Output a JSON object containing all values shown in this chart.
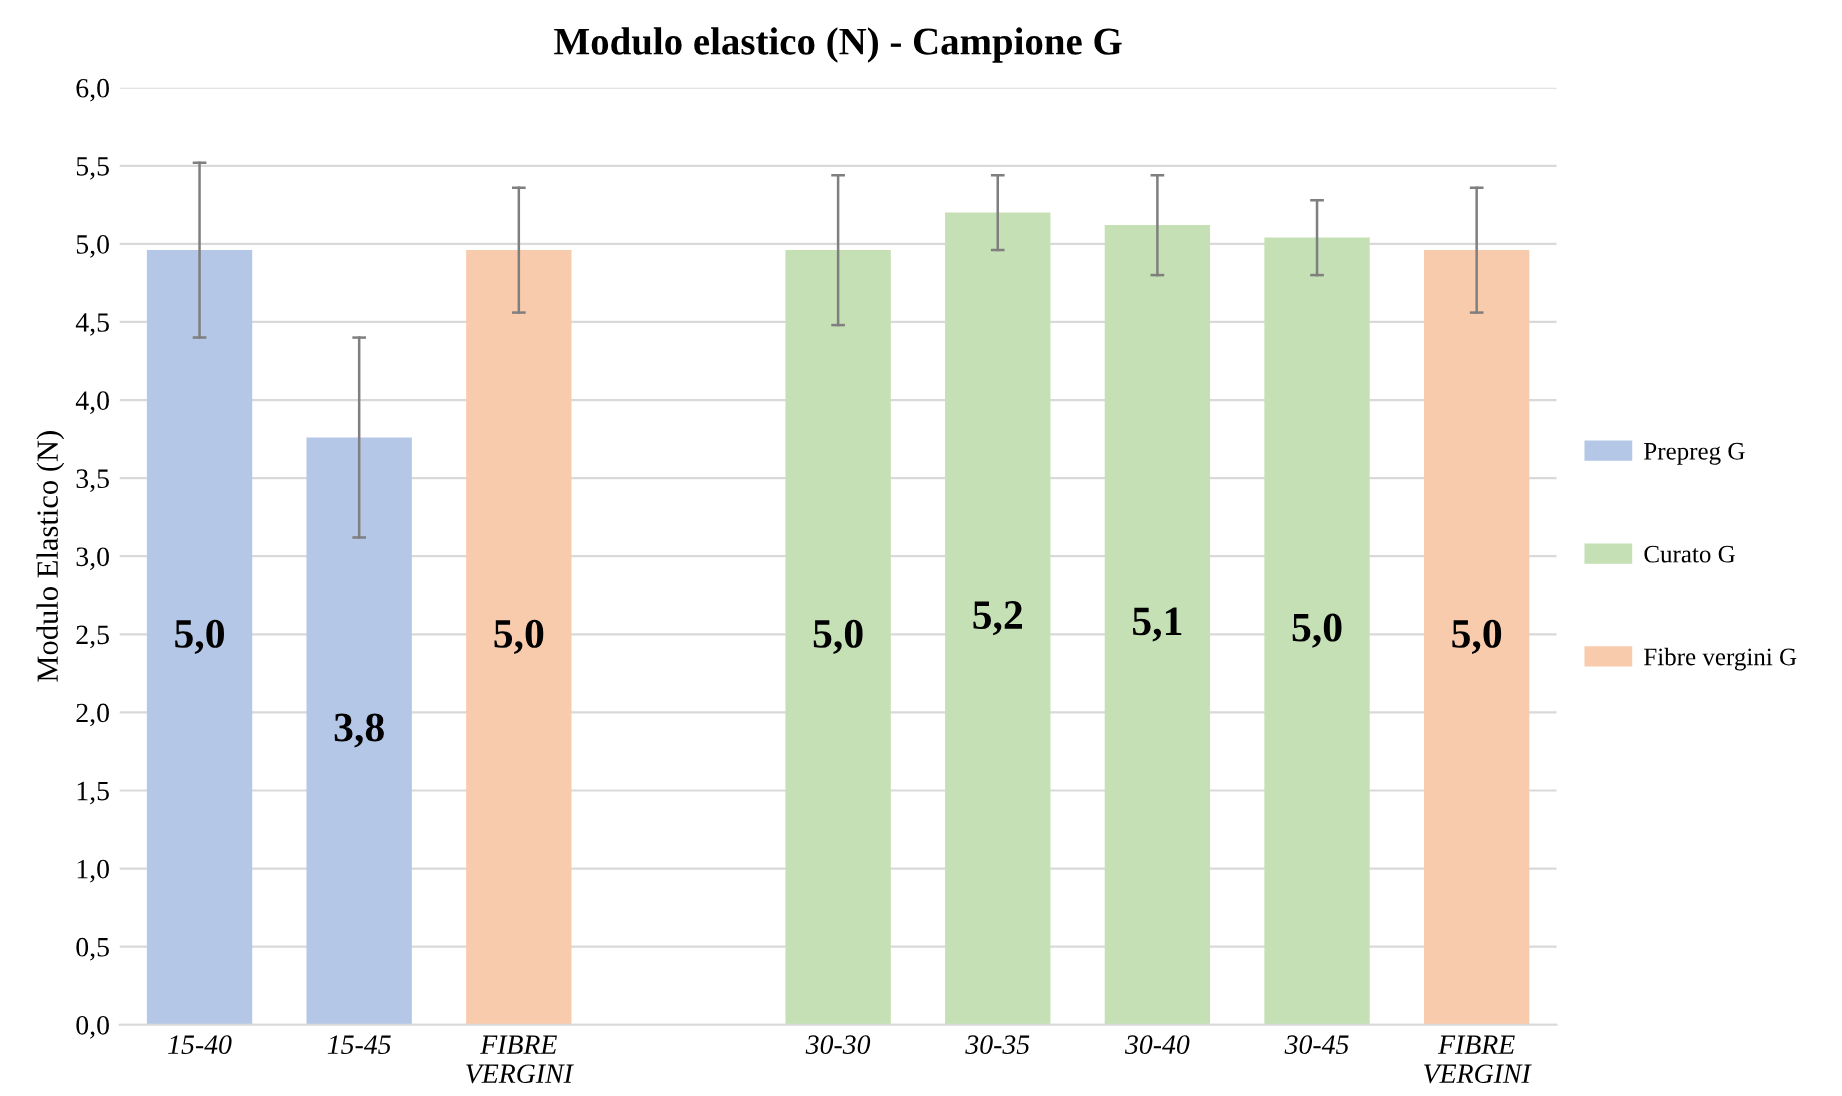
{
  "chart_data": {
    "type": "bar",
    "title": "Modulo elastico (N) - Campione G",
    "ylabel": "Modulo Elastico (N)",
    "categories": [
      "15-40",
      "15-45",
      "FIBRE\nVERGINI",
      null,
      "30-30",
      "30-35",
      "30-40",
      "30-45",
      "FIBRE\nVERGINI"
    ],
    "series": [
      {
        "name": "Prepreg G",
        "color": "#b4c7e7",
        "values": [
          4.96,
          3.76,
          null,
          null,
          null,
          null,
          null,
          null,
          null
        ],
        "errors": [
          [
            4.4,
            5.52
          ],
          [
            3.12,
            4.4
          ],
          null,
          null,
          null,
          null,
          null,
          null,
          null
        ],
        "value_labels": [
          "5,0",
          "3,8",
          null,
          null,
          null,
          null,
          null,
          null,
          null
        ]
      },
      {
        "name": "Curato G",
        "color": "#c5e0b4",
        "values": [
          null,
          null,
          null,
          null,
          4.96,
          5.2,
          5.12,
          5.04,
          null
        ],
        "errors": [
          null,
          null,
          null,
          null,
          [
            4.48,
            5.44
          ],
          [
            4.96,
            5.44
          ],
          [
            4.8,
            5.44
          ],
          [
            4.8,
            5.28
          ],
          null
        ],
        "value_labels": [
          null,
          null,
          null,
          null,
          "5,0",
          "5,2",
          "5,1",
          "5,0",
          null
        ]
      },
      {
        "name": "Fibre vergini G",
        "color": "#f8cbad",
        "values": [
          null,
          null,
          4.96,
          null,
          null,
          null,
          null,
          null,
          4.96
        ],
        "errors": [
          null,
          null,
          [
            4.56,
            5.36
          ],
          null,
          null,
          null,
          null,
          null,
          [
            4.56,
            5.36
          ]
        ],
        "value_labels": [
          null,
          null,
          "5,0",
          null,
          null,
          null,
          null,
          null,
          "5,0"
        ]
      }
    ],
    "ylim": [
      0,
      6
    ],
    "yticks": [
      {
        "value": 0,
        "label": "0,0"
      },
      {
        "value": 0.5,
        "label": "0,5"
      },
      {
        "value": 1,
        "label": "1,0"
      },
      {
        "value": 1.5,
        "label": "1,5"
      },
      {
        "value": 2,
        "label": "2,0"
      },
      {
        "value": 2.5,
        "label": "2,5"
      },
      {
        "value": 3,
        "label": "3,0"
      },
      {
        "value": 3.5,
        "label": "3,5"
      },
      {
        "value": 4,
        "label": "4,0"
      },
      {
        "value": 4.5,
        "label": "4,5"
      },
      {
        "value": 5,
        "label": "5,0"
      },
      {
        "value": 5.5,
        "label": "5,5"
      },
      {
        "value": 6,
        "label": "6,0"
      }
    ],
    "grid": "y",
    "legend": "right"
  }
}
